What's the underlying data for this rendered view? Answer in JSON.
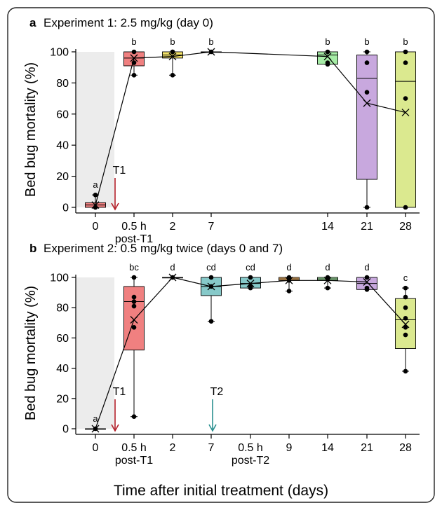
{
  "x_axis_title": "Time after initial treatment (days)",
  "chart_data": [
    {
      "type": "box",
      "panel_letter": "a",
      "title": "Experiment 1: 2.5 mg/kg (day 0)",
      "ylabel": "Bed bug mortality (%)",
      "ylim": [
        0,
        100
      ],
      "yticks": [
        0,
        20,
        40,
        60,
        80,
        100
      ],
      "grid": false,
      "shaded_baseline": true,
      "categories": [
        "0",
        "0.5 h\npost-T1",
        "2",
        "7",
        "14",
        "21",
        "28"
      ],
      "treatment_markers": [
        {
          "label": "T1",
          "color": "#b3202a",
          "after_category": 0
        }
      ],
      "boxes": [
        {
          "category": "0",
          "color": "#f08080",
          "q1": 0,
          "median": 1.5,
          "q3": 3,
          "whisker_low": 0,
          "whisker_high": 8,
          "mean": 1.5,
          "points": [
            0,
            0,
            8
          ],
          "letter": "a"
        },
        {
          "category": "0.5 h\npost-T1",
          "color": "#f08080",
          "q1": 91,
          "median": 96,
          "q3": 100,
          "whisker_low": 85,
          "whisker_high": 100,
          "mean": 96,
          "points": [
            100,
            93,
            85
          ],
          "letter": "b"
        },
        {
          "category": "2",
          "color": "#f5e46a",
          "q1": 96,
          "median": 98,
          "q3": 100,
          "whisker_low": 85,
          "whisker_high": 100,
          "mean": 97,
          "points": [
            100,
            100,
            85
          ],
          "letter": "b"
        },
        {
          "category": "7",
          "color": "#dddddd",
          "q1": 100,
          "median": 100,
          "q3": 100,
          "whisker_low": 100,
          "whisker_high": 100,
          "mean": 100,
          "points": [
            100
          ],
          "letter": "b"
        },
        {
          "category": "14",
          "color": "#a6eca6",
          "q1": 92,
          "median": 98,
          "q3": 100,
          "whisker_low": 92,
          "whisker_high": 100,
          "mean": 97,
          "points": [
            100,
            93,
            92
          ],
          "letter": "b"
        },
        {
          "category": "21",
          "color": "#c8a8de",
          "q1": 18,
          "median": 83,
          "q3": 98,
          "whisker_low": 0,
          "whisker_high": 100,
          "mean": 67,
          "points": [
            100,
            93,
            74,
            0
          ],
          "letter": "b"
        },
        {
          "category": "28",
          "color": "#dbe98f",
          "q1": 0,
          "median": 81,
          "q3": 100,
          "whisker_low": 0,
          "whisker_high": 100,
          "mean": 61,
          "points": [
            100,
            93,
            70,
            0
          ],
          "letter": "b"
        }
      ]
    },
    {
      "type": "box",
      "panel_letter": "b",
      "title": "Experiment 2: 0.5 mg/kg twice (days 0 and 7)",
      "ylabel": "Bed bug mortality (%)",
      "ylim": [
        0,
        100
      ],
      "yticks": [
        0,
        20,
        40,
        60,
        80,
        100
      ],
      "grid": false,
      "shaded_baseline": true,
      "categories": [
        "0",
        "0.5 h\npost-T1",
        "2",
        "7",
        "0.5 h\npost-T2",
        "9",
        "14",
        "21",
        "28"
      ],
      "treatment_markers": [
        {
          "label": "T1",
          "color": "#b3202a",
          "after_category": 0
        },
        {
          "label": "T2",
          "color": "#2a8f8f",
          "after_category": 3
        }
      ],
      "boxes": [
        {
          "category": "0",
          "color": "#dddddd",
          "q1": 0,
          "median": 0,
          "q3": 0,
          "whisker_low": 0,
          "whisker_high": 0,
          "mean": 0,
          "points": [
            0
          ],
          "letter": "a"
        },
        {
          "category": "0.5 h\npost-T1",
          "color": "#f08080",
          "q1": 52,
          "median": 84,
          "q3": 94,
          "whisker_low": 8,
          "whisker_high": 100,
          "mean": 72,
          "points": [
            100,
            87,
            84,
            81,
            67,
            8
          ],
          "letter": "bc"
        },
        {
          "category": "2",
          "color": "#dddddd",
          "q1": 100,
          "median": 100,
          "q3": 100,
          "whisker_low": 100,
          "whisker_high": 100,
          "mean": 100,
          "points": [
            100
          ],
          "letter": "d"
        },
        {
          "category": "7",
          "color": "#86c9c9",
          "q1": 88,
          "median": 94,
          "q3": 100,
          "whisker_low": 71,
          "whisker_high": 100,
          "mean": 94,
          "points": [
            100,
            94,
            71
          ],
          "letter": "cd"
        },
        {
          "category": "0.5 h\npost-T2",
          "color": "#86c9c9",
          "q1": 93,
          "median": 96,
          "q3": 100,
          "whisker_low": 93,
          "whisker_high": 100,
          "mean": 96,
          "points": [
            100,
            94,
            93
          ],
          "letter": "cd"
        },
        {
          "category": "9",
          "color": "#f7b86a",
          "q1": 98,
          "median": 99,
          "q3": 100,
          "whisker_low": 91,
          "whisker_high": 100,
          "mean": 98,
          "points": [
            100,
            98,
            91
          ],
          "letter": "d"
        },
        {
          "category": "14",
          "color": "#a6eca6",
          "q1": 98,
          "median": 99,
          "q3": 100,
          "whisker_low": 93,
          "whisker_high": 100,
          "mean": 98,
          "points": [
            100,
            99,
            93
          ],
          "letter": "d"
        },
        {
          "category": "21",
          "color": "#c8a8de",
          "q1": 92,
          "median": 96,
          "q3": 100,
          "whisker_low": 92,
          "whisker_high": 100,
          "mean": 97,
          "points": [
            100,
            93,
            92
          ],
          "letter": "d"
        },
        {
          "category": "28",
          "color": "#dbe98f",
          "q1": 53,
          "median": 72,
          "q3": 86,
          "whisker_low": 38,
          "whisker_high": 93,
          "mean": 69,
          "points": [
            93,
            87,
            80,
            73,
            67,
            62,
            38
          ],
          "letter": "c"
        }
      ]
    }
  ]
}
